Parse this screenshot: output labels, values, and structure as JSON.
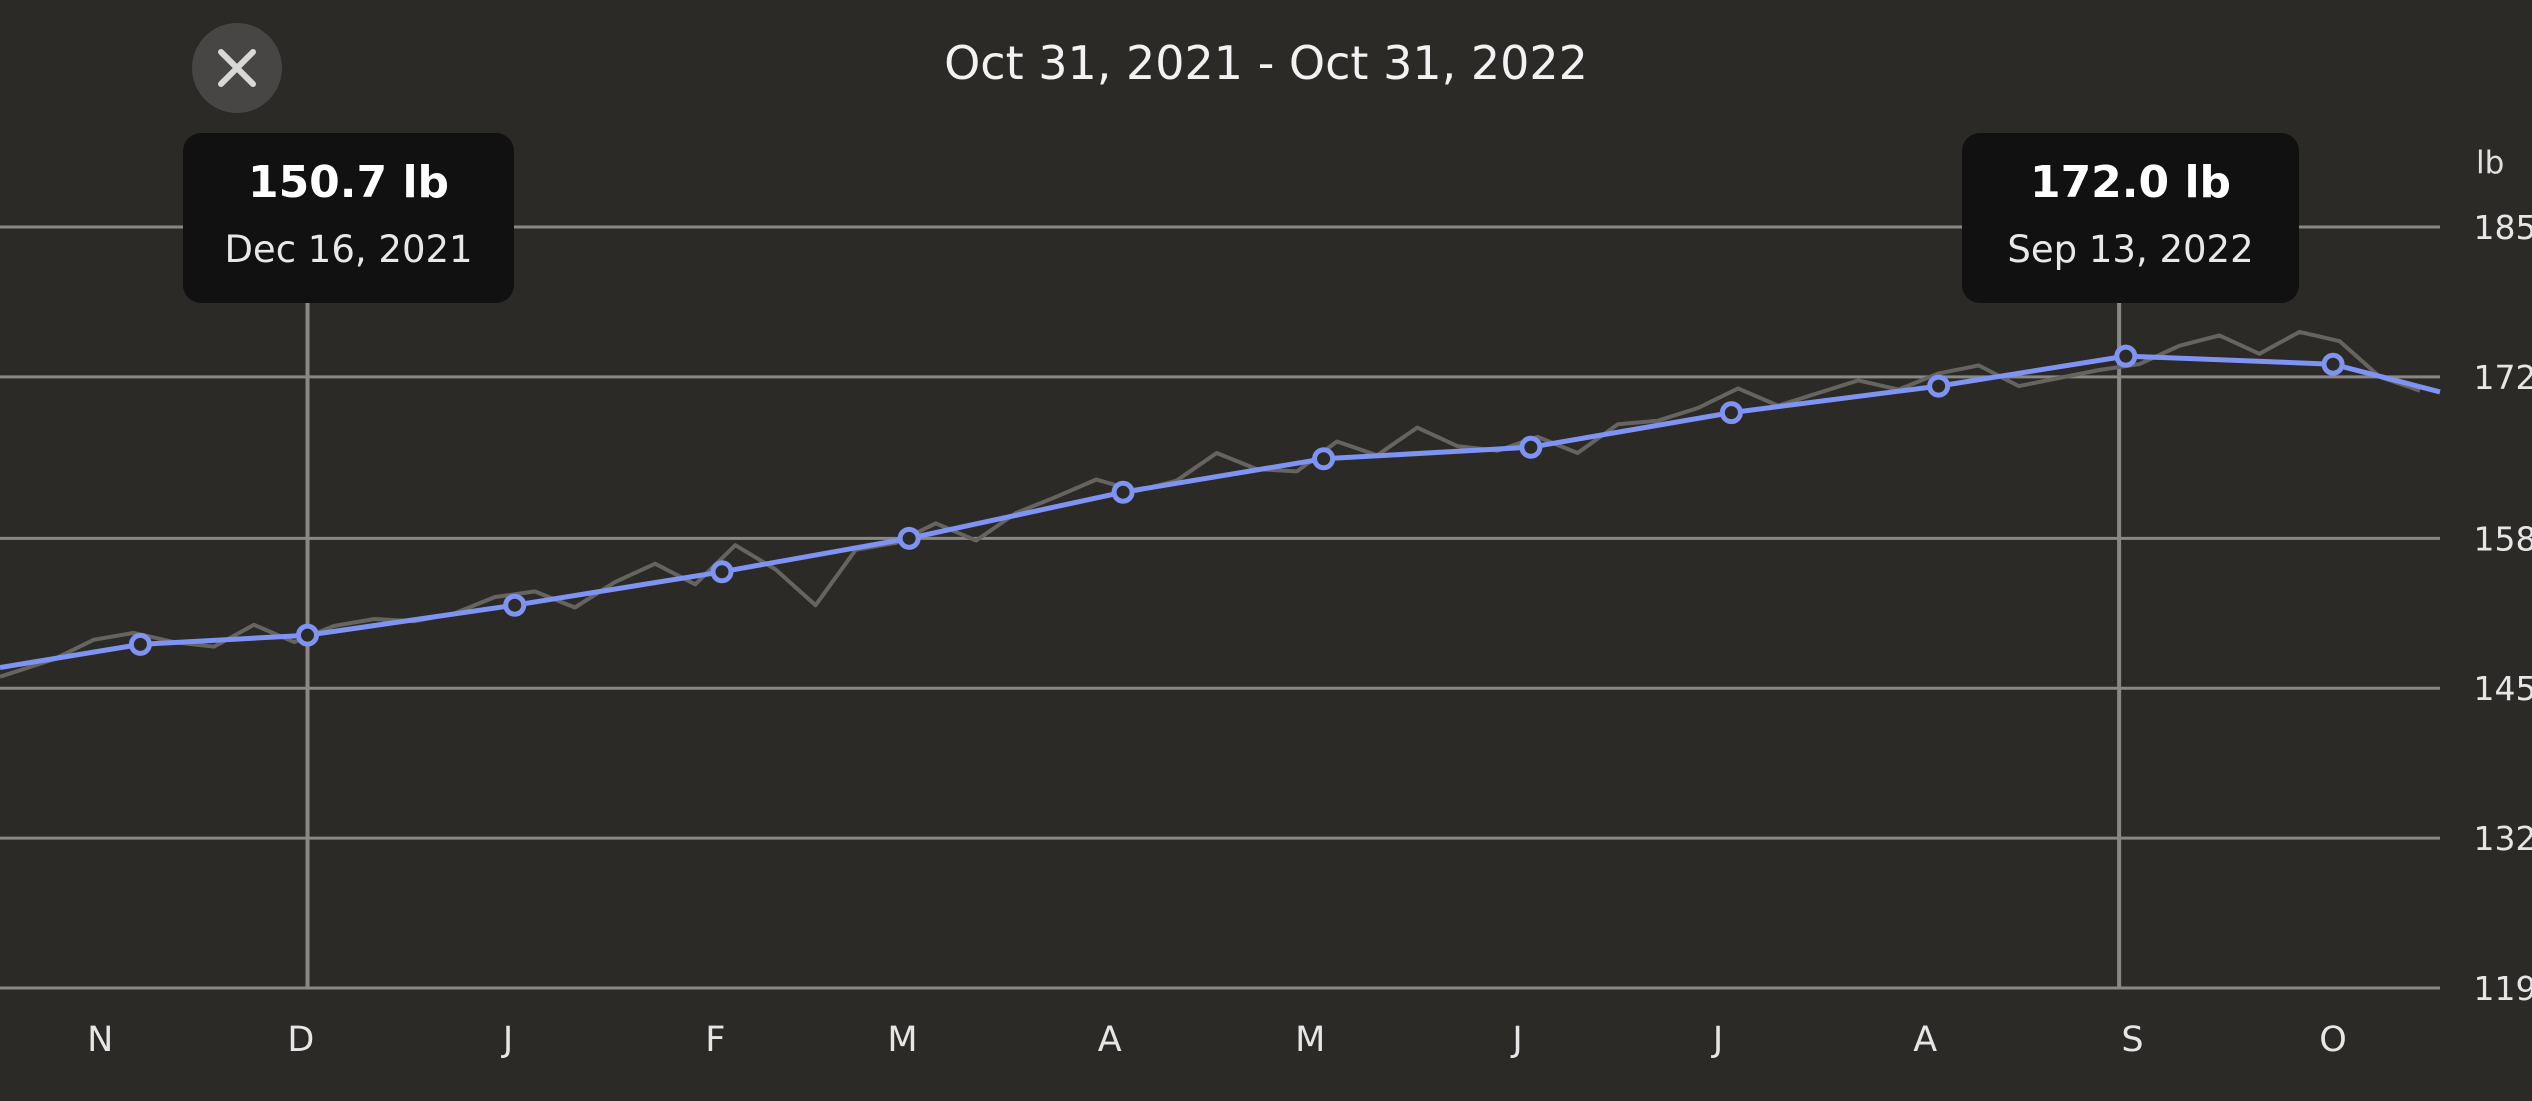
{
  "header": {
    "date_range": "Oct 31, 2021 - Oct 31, 2022",
    "close_icon": "close-icon"
  },
  "tooltips": [
    {
      "value": "150.7 lb",
      "date": "Dec 16, 2021"
    },
    {
      "value": "172.0 lb",
      "date": "Sep 13, 2022"
    }
  ],
  "colors": {
    "background": "#2b2a27",
    "trend_line": "#7e93f2",
    "raw_line": "#66645f",
    "grid": "#8a8884",
    "tooltip_bg": "#111111"
  },
  "chart_data": {
    "type": "line",
    "unit": "lb",
    "x_start": "2021-10-31",
    "x_end": "2022-10-31",
    "ylim": [
      119,
      185
    ],
    "yticks": [
      185,
      172,
      158,
      145,
      132,
      119
    ],
    "grid": true,
    "x_month_labels": [
      "N",
      "D",
      "J",
      "F",
      "M",
      "A",
      "M",
      "J",
      "J",
      "A",
      "S",
      "O"
    ],
    "x_month_dates": [
      "2021-11-15",
      "2021-12-15",
      "2022-01-15",
      "2022-02-15",
      "2022-03-15",
      "2022-04-15",
      "2022-05-15",
      "2022-06-15",
      "2022-07-15",
      "2022-08-15",
      "2022-09-15",
      "2022-10-15"
    ],
    "highlight_dates": [
      "2021-12-16",
      "2022-09-13"
    ],
    "series": [
      {
        "role": "trend",
        "x": [
          "2021-10-31",
          "2021-11-21",
          "2021-12-16",
          "2022-01-16",
          "2022-02-16",
          "2022-03-16",
          "2022-04-17",
          "2022-05-17",
          "2022-06-17",
          "2022-07-17",
          "2022-08-17",
          "2022-09-14",
          "2022-10-15",
          "2022-10-31"
        ],
        "values": [
          146.8,
          148.8,
          149.6,
          152.2,
          155.1,
          158.0,
          162.0,
          164.9,
          165.9,
          168.9,
          171.2,
          173.8,
          173.1,
          170.7
        ],
        "markers": [
          false,
          true,
          true,
          true,
          true,
          true,
          true,
          true,
          true,
          true,
          true,
          true,
          true,
          false
        ]
      },
      {
        "role": "raw",
        "x": [
          "2021-10-31",
          "2021-11-08",
          "2021-11-14",
          "2021-11-20",
          "2021-11-26",
          "2021-12-02",
          "2021-12-08",
          "2021-12-14",
          "2021-12-20",
          "2021-12-26",
          "2022-01-01",
          "2022-01-07",
          "2022-01-13",
          "2022-01-19",
          "2022-01-25",
          "2022-01-31",
          "2022-02-06",
          "2022-02-12",
          "2022-02-18",
          "2022-02-24",
          "2022-03-02",
          "2022-03-08",
          "2022-03-14",
          "2022-03-20",
          "2022-03-26",
          "2022-04-01",
          "2022-04-07",
          "2022-04-13",
          "2022-04-19",
          "2022-04-25",
          "2022-05-01",
          "2022-05-07",
          "2022-05-13",
          "2022-05-19",
          "2022-05-25",
          "2022-05-31",
          "2022-06-06",
          "2022-06-12",
          "2022-06-18",
          "2022-06-24",
          "2022-06-30",
          "2022-07-06",
          "2022-07-12",
          "2022-07-18",
          "2022-07-24",
          "2022-07-30",
          "2022-08-05",
          "2022-08-11",
          "2022-08-17",
          "2022-08-23",
          "2022-08-29",
          "2022-09-04",
          "2022-09-10",
          "2022-09-16",
          "2022-09-22",
          "2022-09-28",
          "2022-10-04",
          "2022-10-10",
          "2022-10-16",
          "2022-10-22",
          "2022-10-28"
        ],
        "values": [
          146.0,
          147.5,
          149.2,
          149.8,
          149.0,
          148.6,
          150.5,
          149.0,
          150.4,
          151.0,
          150.8,
          151.5,
          152.9,
          153.4,
          152.0,
          154.2,
          155.8,
          154.0,
          157.4,
          155.3,
          152.2,
          157.0,
          157.6,
          159.3,
          157.8,
          160.2,
          161.6,
          163.1,
          162.1,
          163.0,
          165.4,
          164.0,
          163.8,
          166.4,
          165.2,
          167.6,
          166.0,
          165.6,
          166.8,
          165.4,
          167.9,
          168.2,
          169.3,
          171.0,
          169.5,
          170.6,
          171.7,
          170.9,
          172.3,
          173.0,
          171.2,
          171.9,
          172.6,
          173.1,
          174.7,
          175.6,
          174.0,
          175.9,
          175.1,
          172.0,
          170.8
        ]
      }
    ]
  }
}
